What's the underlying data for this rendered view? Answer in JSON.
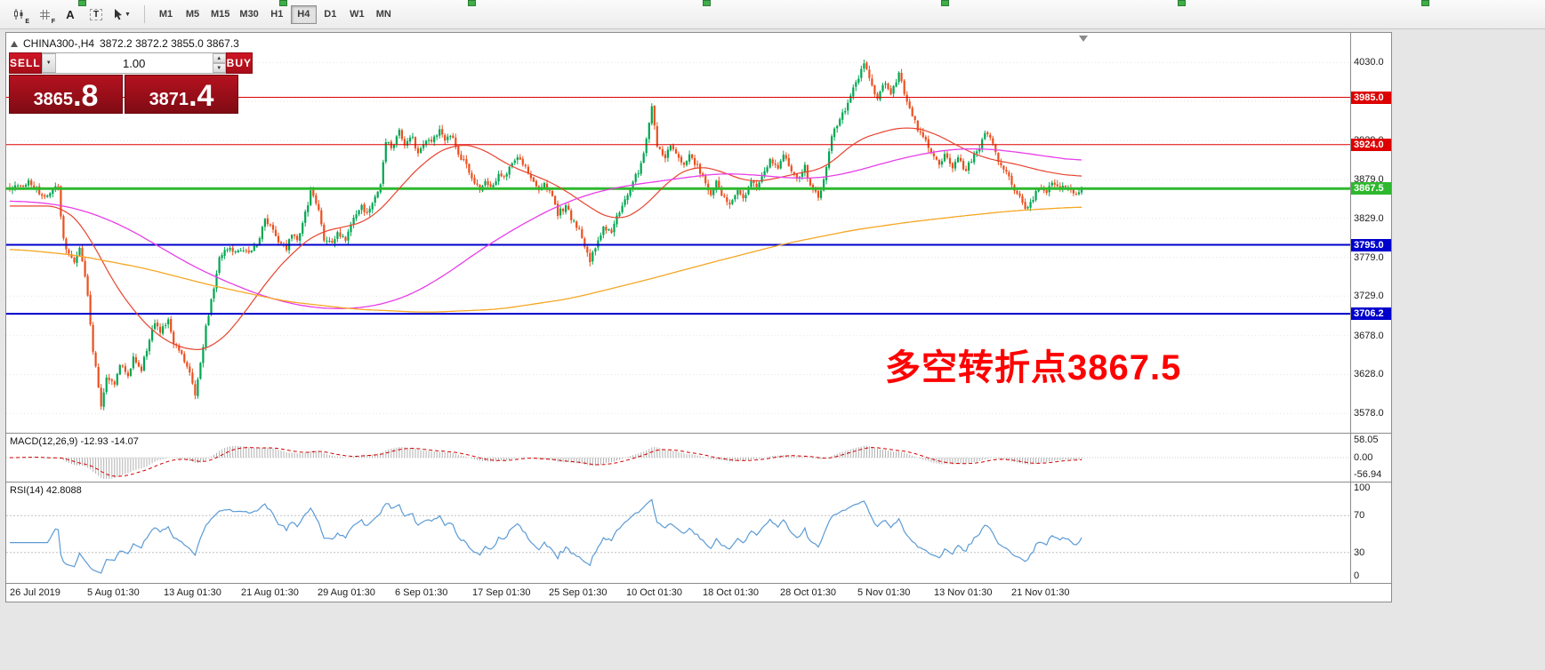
{
  "toolbar": {
    "icons": [
      {
        "name": "candle-chart-icon",
        "badge": "E"
      },
      {
        "name": "grid-icon",
        "badge": "F"
      },
      {
        "name": "text-annotation-icon",
        "glyph": "A"
      },
      {
        "name": "text-label-icon",
        "glyph": "T"
      },
      {
        "name": "cursor-tool-icon",
        "glyph": ""
      }
    ],
    "timeframes": [
      "M1",
      "M5",
      "M15",
      "M30",
      "H1",
      "H4",
      "D1",
      "W1",
      "MN"
    ],
    "active_timeframe": "H4"
  },
  "header": {
    "symbol_title": "CHINA300-,H4",
    "ohlc": "3872.2 3872.2 3855.0 3867.3"
  },
  "trade_panel": {
    "sell_label": "SELL",
    "buy_label": "BUY",
    "volume": "1.00",
    "bid_main": "3865",
    "bid_frac": ".8",
    "ask_main": "3871",
    "ask_frac": ".4",
    "colors": {
      "button": "#d01626",
      "tile_top": "#b5121f",
      "tile_bottom": "#7f0b13"
    }
  },
  "annotation": {
    "text": "多空转折点3867.5",
    "color": "#fe0000"
  },
  "price_axis": {
    "ticks": [
      4030.0,
      3980.0,
      3929.0,
      3879.0,
      3829.0,
      3779.0,
      3729.0,
      3678.0,
      3628.0,
      3578.0
    ]
  },
  "levels": [
    {
      "label": "3985.0",
      "price": 3985.0,
      "color": "#dd0000",
      "width": 1
    },
    {
      "label": "3924.0",
      "price": 3924.0,
      "color": "#dd0000",
      "width": 1
    },
    {
      "label": "3867.5",
      "price": 3867.5,
      "color": "#2eb82e",
      "width": 3
    },
    {
      "label": "3795.0",
      "price": 3795.0,
      "color": "#0000cc",
      "width": 2
    },
    {
      "label": "3706.2",
      "price": 3706.2,
      "color": "#0000cc",
      "width": 2
    }
  ],
  "macd_panel": {
    "label": "MACD(12,26,9)",
    "values": "-12.93 -14.07",
    "axis": [
      "58.05",
      "0.00",
      "-56.94"
    ]
  },
  "rsi_panel": {
    "label": "RSI(14)",
    "value": "42.8088",
    "axis": [
      "100",
      "70",
      "30",
      "0"
    ],
    "levels": [
      70,
      30
    ],
    "line_color": "#5b9bd5"
  },
  "time_axis": {
    "labels": [
      "26 Jul 2019",
      "5 Aug 01:30",
      "13 Aug 01:30",
      "21 Aug 01:30",
      "29 Aug 01:30",
      "6 Sep 01:30",
      "17 Sep 01:30",
      "25 Sep 01:30",
      "10 Oct 01:30",
      "18 Oct 01:30",
      "28 Oct 01:30",
      "5 Nov 01:30",
      "13 Nov 01:30",
      "21 Nov 01:30"
    ]
  },
  "chart_data": {
    "type": "candlestick",
    "symbol": "CHINA300-",
    "timeframe": "H4",
    "current": {
      "open": 3872.2,
      "high": 3872.2,
      "low": 3855.0,
      "close": 3867.3,
      "bid": 3865.8,
      "ask": 3871.4
    },
    "ylim": [
      3553,
      4068
    ],
    "bar_count": 400,
    "bar_spacing": 3.02,
    "last_close": 3867.3,
    "colors": {
      "up": "#00a651",
      "down": "#ec4f1e"
    },
    "horizontal_levels": [
      3985.0,
      3924.0,
      3867.5,
      3795.0,
      3706.2
    ],
    "price_anchors": [
      [
        0,
        3865
      ],
      [
        7,
        3876
      ],
      [
        13,
        3856
      ],
      [
        18,
        3870
      ],
      [
        20,
        3800
      ],
      [
        24,
        3770
      ],
      [
        26,
        3792
      ],
      [
        29,
        3730
      ],
      [
        31,
        3660
      ],
      [
        34,
        3588
      ],
      [
        36,
        3625
      ],
      [
        39,
        3618
      ],
      [
        41,
        3642
      ],
      [
        44,
        3625
      ],
      [
        46,
        3650
      ],
      [
        49,
        3635
      ],
      [
        51,
        3660
      ],
      [
        54,
        3695
      ],
      [
        56,
        3680
      ],
      [
        59,
        3700
      ],
      [
        61,
        3670
      ],
      [
        64,
        3655
      ],
      [
        66,
        3640
      ],
      [
        69,
        3602
      ],
      [
        71,
        3640
      ],
      [
        73,
        3690
      ],
      [
        76,
        3740
      ],
      [
        78,
        3778
      ],
      [
        81,
        3790
      ],
      [
        84,
        3784
      ],
      [
        87,
        3790
      ],
      [
        89,
        3786
      ],
      [
        92,
        3796
      ],
      [
        95,
        3828
      ],
      [
        98,
        3815
      ],
      [
        100,
        3800
      ],
      [
        103,
        3790
      ],
      [
        105,
        3810
      ],
      [
        107,
        3800
      ],
      [
        110,
        3835
      ],
      [
        112,
        3863
      ],
      [
        115,
        3840
      ],
      [
        117,
        3802
      ],
      [
        120,
        3795
      ],
      [
        122,
        3810
      ],
      [
        125,
        3800
      ],
      [
        128,
        3830
      ],
      [
        131,
        3845
      ],
      [
        133,
        3835
      ],
      [
        136,
        3855
      ],
      [
        138,
        3872
      ],
      [
        140,
        3928
      ],
      [
        142,
        3920
      ],
      [
        145,
        3940
      ],
      [
        147,
        3925
      ],
      [
        150,
        3935
      ],
      [
        152,
        3910
      ],
      [
        155,
        3930
      ],
      [
        157,
        3925
      ],
      [
        160,
        3945
      ],
      [
        162,
        3930
      ],
      [
        165,
        3935
      ],
      [
        167,
        3910
      ],
      [
        170,
        3900
      ],
      [
        172,
        3880
      ],
      [
        175,
        3865
      ],
      [
        177,
        3875
      ],
      [
        180,
        3870
      ],
      [
        182,
        3885
      ],
      [
        184,
        3880
      ],
      [
        187,
        3900
      ],
      [
        189,
        3910
      ],
      [
        192,
        3895
      ],
      [
        194,
        3880
      ],
      [
        197,
        3865
      ],
      [
        199,
        3875
      ],
      [
        202,
        3855
      ],
      [
        204,
        3835
      ],
      [
        207,
        3845
      ],
      [
        209,
        3830
      ],
      [
        212,
        3815
      ],
      [
        214,
        3795
      ],
      [
        216,
        3776
      ],
      [
        219,
        3800
      ],
      [
        221,
        3820
      ],
      [
        224,
        3810
      ],
      [
        226,
        3830
      ],
      [
        229,
        3855
      ],
      [
        231,
        3870
      ],
      [
        234,
        3890
      ],
      [
        236,
        3910
      ],
      [
        239,
        3972
      ],
      [
        241,
        3920
      ],
      [
        244,
        3905
      ],
      [
        246,
        3925
      ],
      [
        249,
        3910
      ],
      [
        251,
        3895
      ],
      [
        253,
        3910
      ],
      [
        256,
        3895
      ],
      [
        258,
        3880
      ],
      [
        261,
        3862
      ],
      [
        263,
        3875
      ],
      [
        266,
        3855
      ],
      [
        268,
        3845
      ],
      [
        271,
        3865
      ],
      [
        273,
        3855
      ],
      [
        276,
        3875
      ],
      [
        278,
        3870
      ],
      [
        281,
        3890
      ],
      [
        283,
        3905
      ],
      [
        286,
        3895
      ],
      [
        288,
        3910
      ],
      [
        291,
        3890
      ],
      [
        293,
        3880
      ],
      [
        296,
        3895
      ],
      [
        298,
        3870
      ],
      [
        301,
        3856
      ],
      [
        303,
        3880
      ],
      [
        306,
        3935
      ],
      [
        308,
        3950
      ],
      [
        311,
        3970
      ],
      [
        313,
        3990
      ],
      [
        316,
        4010
      ],
      [
        318,
        4030
      ],
      [
        321,
        4000
      ],
      [
        323,
        3985
      ],
      [
        326,
        4005
      ],
      [
        328,
        3990
      ],
      [
        331,
        4015
      ],
      [
        333,
        3990
      ],
      [
        336,
        3960
      ],
      [
        338,
        3945
      ],
      [
        341,
        3930
      ],
      [
        343,
        3915
      ],
      [
        346,
        3900
      ],
      [
        348,
        3910
      ],
      [
        351,
        3895
      ],
      [
        353,
        3905
      ],
      [
        356,
        3890
      ],
      [
        358,
        3905
      ],
      [
        361,
        3920
      ],
      [
        363,
        3940
      ],
      [
        366,
        3925
      ],
      [
        368,
        3905
      ],
      [
        371,
        3890
      ],
      [
        373,
        3870
      ],
      [
        376,
        3855
      ],
      [
        378,
        3840
      ],
      [
        381,
        3855
      ],
      [
        383,
        3870
      ],
      [
        386,
        3860
      ],
      [
        388,
        3875
      ],
      [
        391,
        3865
      ],
      [
        393,
        3872
      ],
      [
        396,
        3860
      ],
      [
        399,
        3867.3
      ]
    ],
    "ma_lines": [
      {
        "name": "ma-fast",
        "color": "#e8432e",
        "width": 1.2,
        "anchors": [
          [
            0,
            3845
          ],
          [
            20,
            3845
          ],
          [
            29,
            3812
          ],
          [
            39,
            3742
          ],
          [
            53,
            3682
          ],
          [
            66,
            3658
          ],
          [
            76,
            3662
          ],
          [
            86,
            3700
          ],
          [
            96,
            3750
          ],
          [
            106,
            3788
          ],
          [
            115,
            3812
          ],
          [
            125,
            3818
          ],
          [
            135,
            3828
          ],
          [
            145,
            3868
          ],
          [
            155,
            3905
          ],
          [
            165,
            3925
          ],
          [
            175,
            3922
          ],
          [
            185,
            3898
          ],
          [
            195,
            3885
          ],
          [
            205,
            3870
          ],
          [
            215,
            3845
          ],
          [
            225,
            3825
          ],
          [
            235,
            3838
          ],
          [
            245,
            3878
          ],
          [
            255,
            3898
          ],
          [
            265,
            3890
          ],
          [
            275,
            3875
          ],
          [
            285,
            3880
          ],
          [
            294,
            3888
          ],
          [
            304,
            3893
          ],
          [
            314,
            3928
          ],
          [
            324,
            3940
          ],
          [
            334,
            3948
          ],
          [
            344,
            3940
          ],
          [
            354,
            3920
          ],
          [
            364,
            3905
          ],
          [
            374,
            3900
          ],
          [
            384,
            3890
          ],
          [
            399,
            3882
          ]
        ]
      },
      {
        "name": "ma-medium",
        "color": "#e83ee8",
        "width": 1.3,
        "anchors": [
          [
            0,
            3852
          ],
          [
            16,
            3848
          ],
          [
            29,
            3838
          ],
          [
            43,
            3818
          ],
          [
            56,
            3792
          ],
          [
            69,
            3766
          ],
          [
            83,
            3744
          ],
          [
            96,
            3727
          ],
          [
            109,
            3716
          ],
          [
            122,
            3712
          ],
          [
            136,
            3716
          ],
          [
            149,
            3730
          ],
          [
            162,
            3756
          ],
          [
            175,
            3788
          ],
          [
            189,
            3818
          ],
          [
            202,
            3842
          ],
          [
            215,
            3860
          ],
          [
            229,
            3871
          ],
          [
            240,
            3876
          ],
          [
            252,
            3882
          ],
          [
            265,
            3887
          ],
          [
            278,
            3885
          ],
          [
            290,
            3881
          ],
          [
            302,
            3881
          ],
          [
            314,
            3889
          ],
          [
            326,
            3901
          ],
          [
            338,
            3911
          ],
          [
            350,
            3918
          ],
          [
            362,
            3919
          ],
          [
            374,
            3915
          ],
          [
            386,
            3909
          ],
          [
            399,
            3903
          ]
        ]
      },
      {
        "name": "ma-slow",
        "color": "#f5a623",
        "width": 1.3,
        "anchors": [
          [
            0,
            3790
          ],
          [
            24,
            3782
          ],
          [
            50,
            3765
          ],
          [
            76,
            3742
          ],
          [
            103,
            3722
          ],
          [
            129,
            3712
          ],
          [
            155,
            3708
          ],
          [
            182,
            3712
          ],
          [
            209,
            3726
          ],
          [
            235,
            3748
          ],
          [
            261,
            3772
          ],
          [
            288,
            3796
          ],
          [
            314,
            3814
          ],
          [
            334,
            3824
          ],
          [
            354,
            3832
          ],
          [
            374,
            3839
          ],
          [
            399,
            3844
          ]
        ]
      }
    ],
    "macd": {
      "fast": 12,
      "slow": 26,
      "signal": 9,
      "value": -12.93,
      "signal_value": -14.07,
      "hist_color": "#b0b0b0",
      "signal_color": "#d00000"
    },
    "rsi": {
      "period": 14,
      "value": 42.8088
    }
  }
}
